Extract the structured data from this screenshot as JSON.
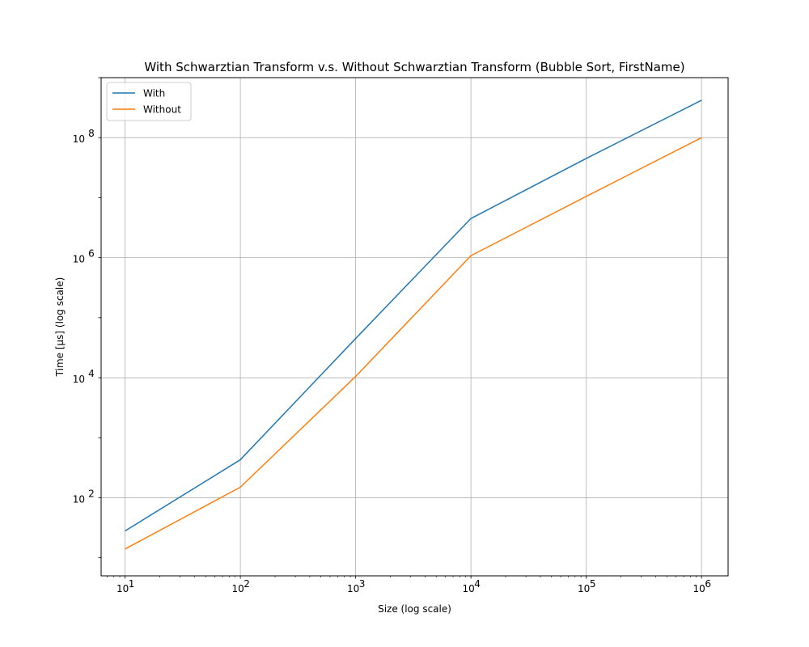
{
  "chart_data": {
    "type": "line",
    "title": "With Schwarztian Transform v.s. Without Schwarztian Transform (Bubble Sort, FirstName)",
    "xlabel": "Size (log scale)",
    "ylabel": "Time [μs] (log scale)",
    "xscale": "log",
    "yscale": "log",
    "xlim": [
      6.2,
      1700000
    ],
    "ylim": [
      5,
      1000000000
    ],
    "x_ticks": [
      {
        "value": 10,
        "base": "10",
        "exp": "1"
      },
      {
        "value": 100,
        "base": "10",
        "exp": "2"
      },
      {
        "value": 1000,
        "base": "10",
        "exp": "3"
      },
      {
        "value": 10000,
        "base": "10",
        "exp": "4"
      },
      {
        "value": 100000,
        "base": "10",
        "exp": "5"
      },
      {
        "value": 1000000,
        "base": "10",
        "exp": "6"
      }
    ],
    "y_ticks": [
      {
        "value": 100,
        "base": "10",
        "exp": "2"
      },
      {
        "value": 10000,
        "base": "10",
        "exp": "4"
      },
      {
        "value": 1000000,
        "base": "10",
        "exp": "6"
      },
      {
        "value": 100000000,
        "base": "10",
        "exp": "8"
      }
    ],
    "grid": true,
    "legend_position": "top-left",
    "x": [
      10,
      100,
      1000,
      10000,
      100000,
      1000000
    ],
    "series": [
      {
        "name": "With",
        "color": "#1f77b4",
        "values": [
          28,
          430,
          45000,
          4500000,
          45000000,
          420000000
        ]
      },
      {
        "name": "Without",
        "color": "#ff7f0e",
        "values": [
          14,
          150,
          10500,
          1080000,
          10500000,
          100000000
        ]
      }
    ]
  }
}
